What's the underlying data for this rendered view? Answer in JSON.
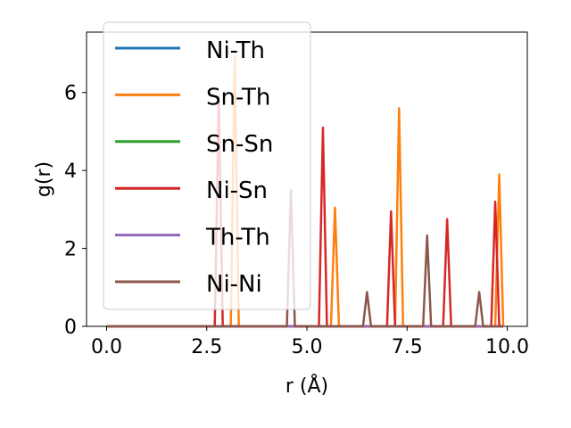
{
  "chart_data": {
    "type": "line",
    "title": "",
    "xlabel": "r (Å)",
    "ylabel": "g(r)",
    "xlim": [
      -0.5,
      10.5
    ],
    "ylim": [
      0,
      7.55
    ],
    "xticks": [
      0.0,
      2.5,
      5.0,
      7.5,
      10.0
    ],
    "xtick_labels": [
      "0.0",
      "2.5",
      "5.0",
      "7.5",
      "10.0"
    ],
    "yticks": [
      0,
      2,
      4,
      6
    ],
    "ytick_labels": [
      "0",
      "2",
      "4",
      "6"
    ],
    "grid": false,
    "legend_position": "top-left",
    "x_start": 0.0,
    "x_end": 9.9,
    "peak_halfwidth": 0.1,
    "series": [
      {
        "name": "Ni-Th",
        "color": "#1f77b4",
        "peaks": []
      },
      {
        "name": "Sn-Th",
        "color": "#ff7f0e",
        "peaks": [
          [
            3.2,
            6.95
          ],
          [
            5.7,
            3.05
          ],
          [
            7.3,
            5.6
          ],
          [
            9.8,
            3.9
          ]
        ]
      },
      {
        "name": "Sn-Sn",
        "color": "#2ca02c",
        "peaks": []
      },
      {
        "name": "Ni-Sn",
        "color": "#d62728",
        "peaks": [
          [
            2.8,
            5.9
          ],
          [
            5.4,
            5.1
          ],
          [
            7.1,
            2.95
          ],
          [
            8.5,
            2.75
          ],
          [
            9.7,
            3.2
          ]
        ]
      },
      {
        "name": "Th-Th",
        "color": "#9467bd",
        "peaks": []
      },
      {
        "name": "Ni-Ni",
        "color": "#8c564b",
        "peaks": [
          [
            4.6,
            3.5
          ],
          [
            6.5,
            0.88
          ],
          [
            8.0,
            2.33
          ],
          [
            9.3,
            0.88
          ]
        ]
      }
    ]
  }
}
